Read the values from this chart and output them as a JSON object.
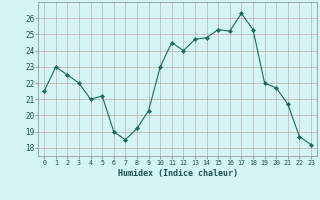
{
  "x": [
    0,
    1,
    2,
    3,
    4,
    5,
    6,
    7,
    8,
    9,
    10,
    11,
    12,
    13,
    14,
    15,
    16,
    17,
    18,
    19,
    20,
    21,
    22,
    23
  ],
  "y": [
    21.5,
    23.0,
    22.5,
    22.0,
    21.0,
    21.2,
    19.0,
    18.5,
    19.2,
    20.3,
    23.0,
    24.5,
    24.0,
    24.7,
    24.8,
    25.3,
    25.2,
    26.3,
    25.3,
    22.0,
    21.7,
    20.7,
    18.7,
    18.2
  ],
  "line_color": "#1a6b5a",
  "marker": "D",
  "marker_size": 2.0,
  "bg_color": "#d4f5f5",
  "grid_color_minor": "#e8c8c8",
  "grid_color_major": "#c8a8a8",
  "ylabel_ticks": [
    18,
    19,
    20,
    21,
    22,
    23,
    24,
    25,
    26
  ],
  "xlabel": "Humidex (Indice chaleur)",
  "ylim": [
    17.5,
    27.0
  ],
  "xlim": [
    -0.5,
    23.5
  ]
}
